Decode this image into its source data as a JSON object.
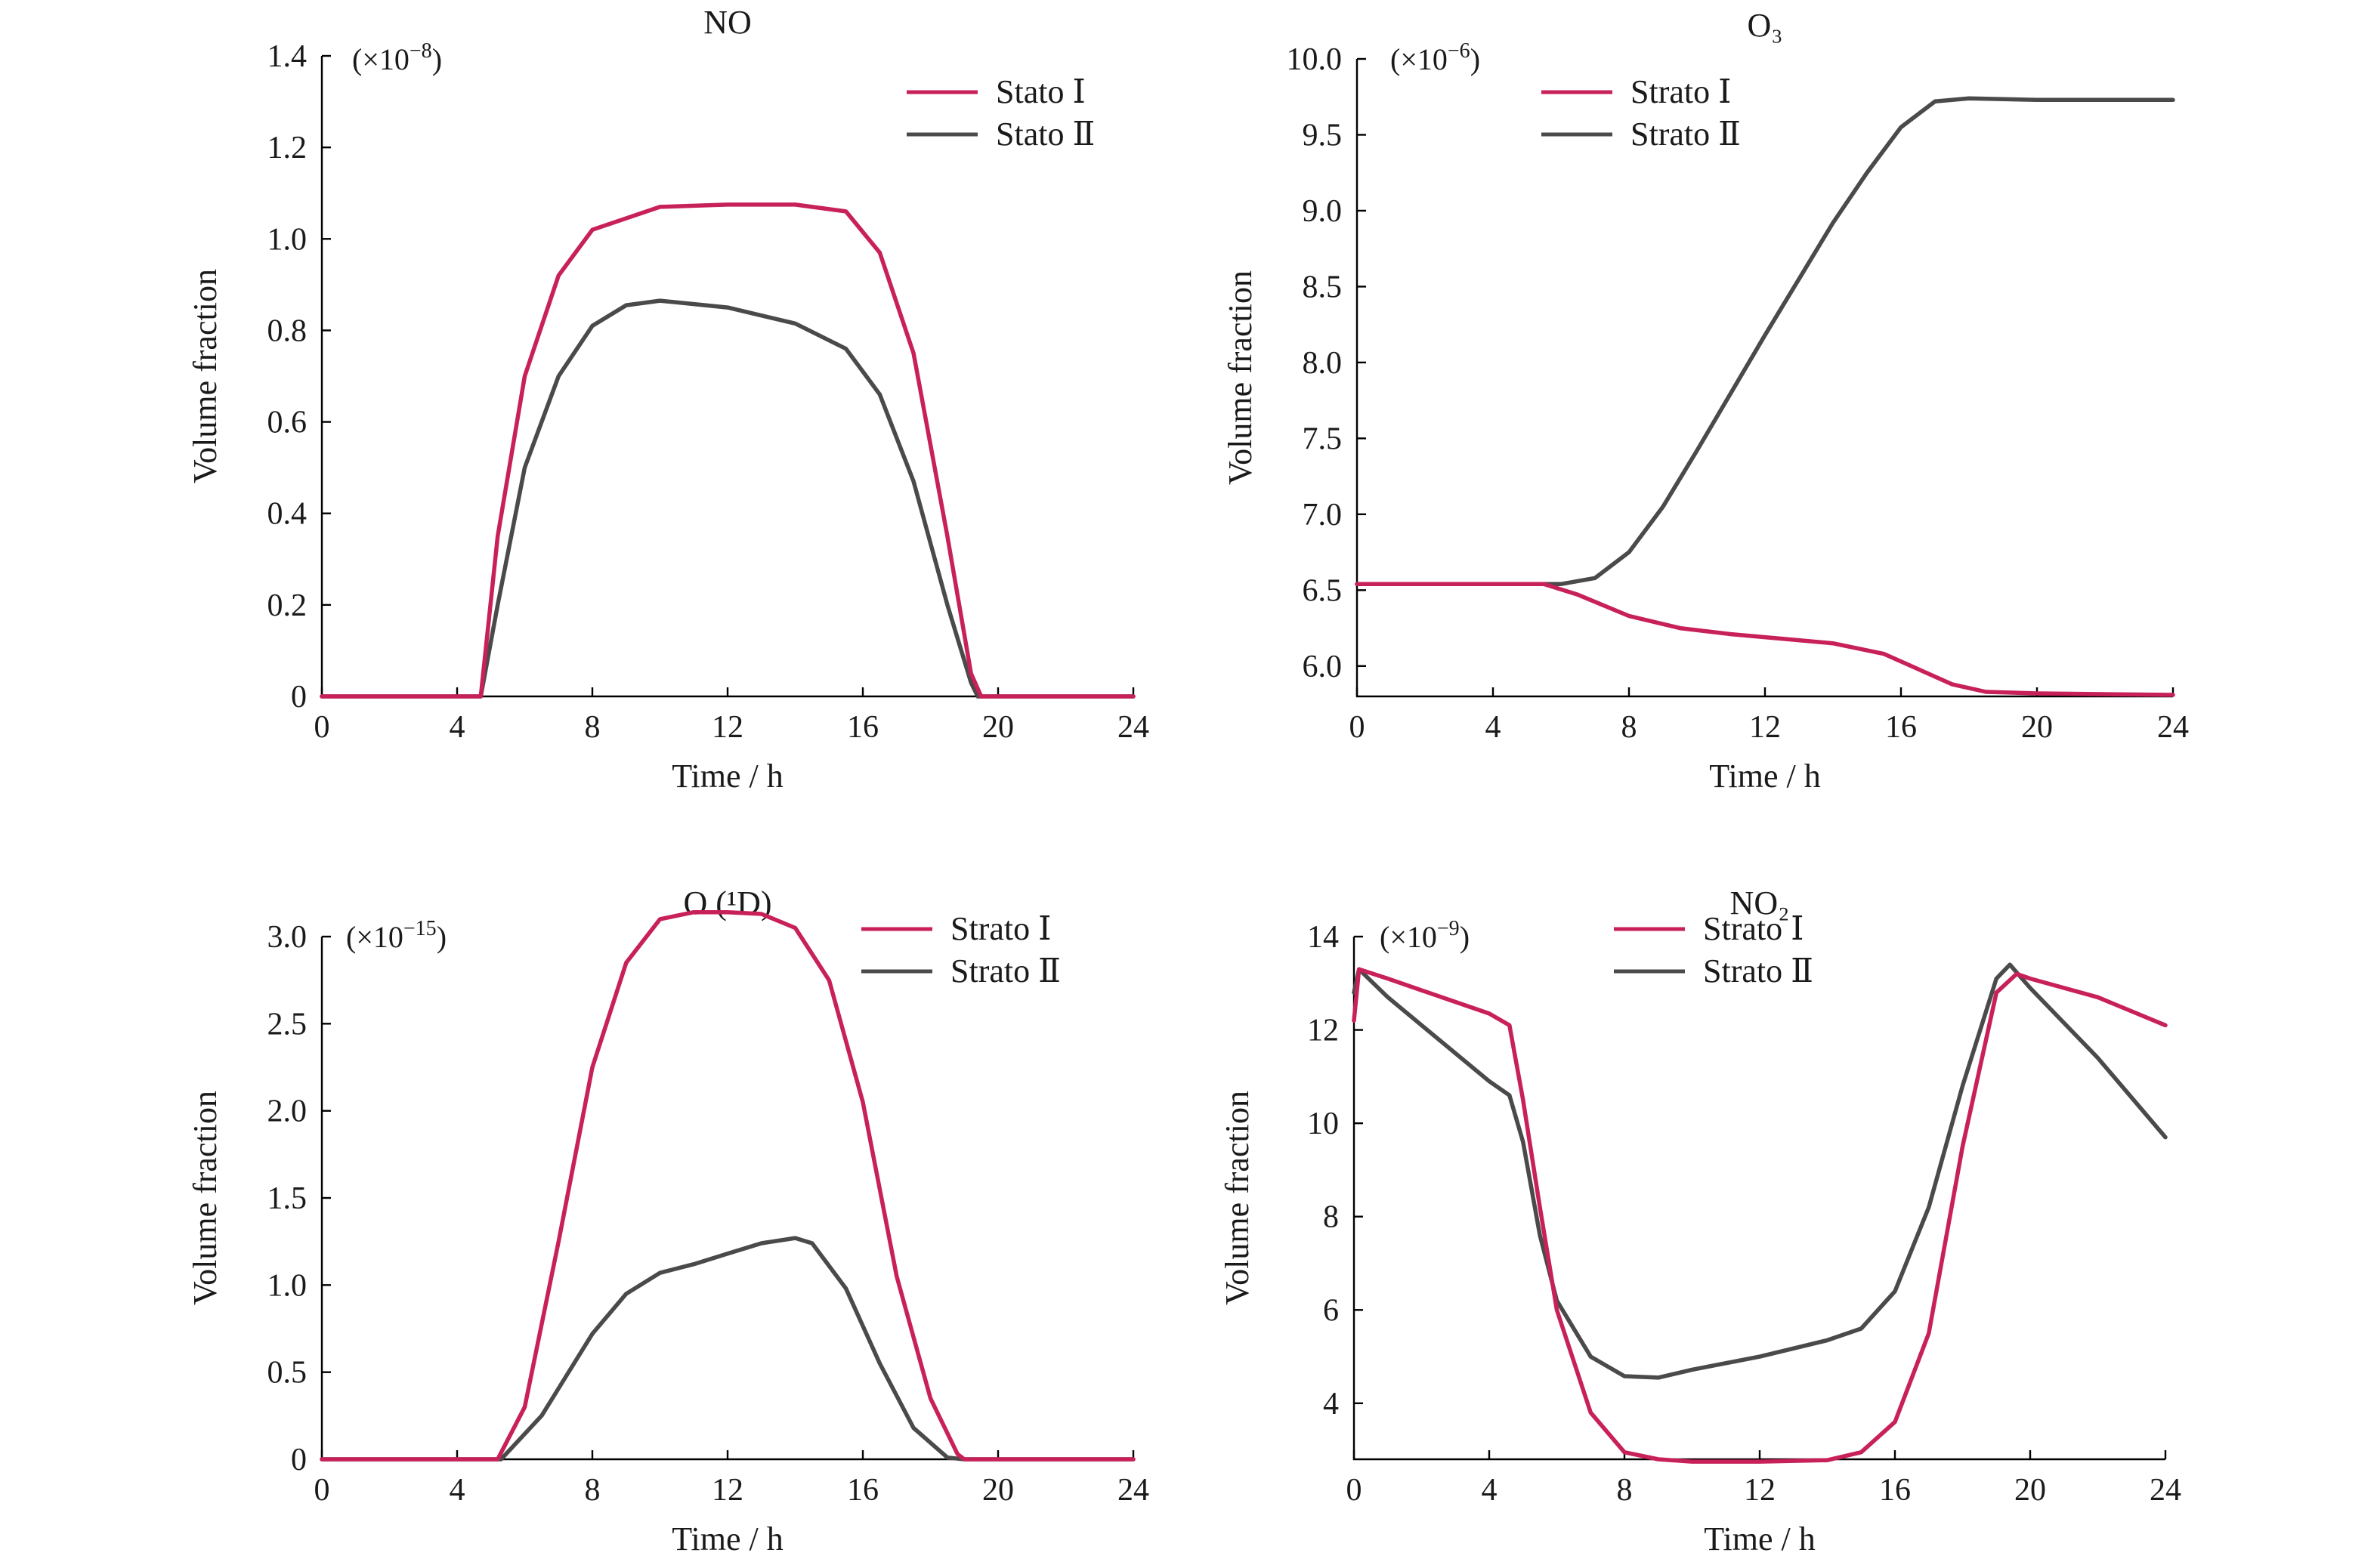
{
  "colors": {
    "series1": "#c8215a",
    "series2": "#4a4a4a"
  },
  "chart_data": [
    {
      "type": "line",
      "title": "NO",
      "multiplier": {
        "base": "(×10",
        "exp": "−8",
        "close": ")"
      },
      "xlabel": "Time / h",
      "ylabel": "Volume fraction",
      "xlim": [
        0,
        24
      ],
      "ylim": [
        0,
        1.4
      ],
      "xticks": [
        "0",
        "4",
        "8",
        "12",
        "16",
        "20",
        "24"
      ],
      "yticks": [
        "0",
        "0.2",
        "0.4",
        "0.6",
        "0.8",
        "1.0",
        "1.2",
        "1.4"
      ],
      "legend": "top-right",
      "series": [
        {
          "name": "Stato Ⅰ",
          "points": [
            [
              0,
              0
            ],
            [
              4.7,
              0
            ],
            [
              5.2,
              0.35
            ],
            [
              6,
              0.7
            ],
            [
              7,
              0.92
            ],
            [
              8,
              1.02
            ],
            [
              10,
              1.07
            ],
            [
              12,
              1.075
            ],
            [
              14,
              1.075
            ],
            [
              15.5,
              1.06
            ],
            [
              16.5,
              0.97
            ],
            [
              17.5,
              0.75
            ],
            [
              18.5,
              0.35
            ],
            [
              19.2,
              0.05
            ],
            [
              19.5,
              0
            ],
            [
              24,
              0
            ]
          ]
        },
        {
          "name": "Stato Ⅱ",
          "points": [
            [
              0,
              0
            ],
            [
              4.7,
              0
            ],
            [
              5.2,
              0.2
            ],
            [
              6,
              0.5
            ],
            [
              7,
              0.7
            ],
            [
              8,
              0.81
            ],
            [
              9,
              0.855
            ],
            [
              10,
              0.865
            ],
            [
              12,
              0.85
            ],
            [
              14,
              0.815
            ],
            [
              15.5,
              0.76
            ],
            [
              16.5,
              0.66
            ],
            [
              17.5,
              0.47
            ],
            [
              18.5,
              0.2
            ],
            [
              19.2,
              0.03
            ],
            [
              19.4,
              0
            ],
            [
              24,
              0
            ]
          ]
        }
      ]
    },
    {
      "type": "line",
      "title": "O₃",
      "multiplier": {
        "base": "(×10",
        "exp": "−6",
        "close": ")"
      },
      "xlabel": "Time / h",
      "ylabel": "Volume fraction",
      "xlim": [
        0,
        24
      ],
      "ylim": [
        5.8,
        10.0
      ],
      "xticks": [
        "0",
        "4",
        "8",
        "12",
        "16",
        "20",
        "24"
      ],
      "yticks": [
        "6.0",
        "6.5",
        "7.0",
        "7.5",
        "8.0",
        "8.5",
        "9.0",
        "9.5",
        "10.0"
      ],
      "legend": "top-left",
      "series": [
        {
          "name": "Strato Ⅰ",
          "points": [
            [
              0,
              6.54
            ],
            [
              5.5,
              6.54
            ],
            [
              6.5,
              6.47
            ],
            [
              8,
              6.33
            ],
            [
              9.5,
              6.25
            ],
            [
              11,
              6.21
            ],
            [
              12.5,
              6.18
            ],
            [
              14,
              6.15
            ],
            [
              15.5,
              6.08
            ],
            [
              16.5,
              5.98
            ],
            [
              17.5,
              5.88
            ],
            [
              18.5,
              5.83
            ],
            [
              20,
              5.82
            ],
            [
              24,
              5.81
            ]
          ]
        },
        {
          "name": "Strato Ⅱ",
          "points": [
            [
              0,
              6.54
            ],
            [
              6,
              6.54
            ],
            [
              7,
              6.58
            ],
            [
              8,
              6.75
            ],
            [
              9,
              7.05
            ],
            [
              10,
              7.42
            ],
            [
              11,
              7.8
            ],
            [
              12,
              8.18
            ],
            [
              13,
              8.55
            ],
            [
              14,
              8.92
            ],
            [
              15,
              9.25
            ],
            [
              16,
              9.55
            ],
            [
              17,
              9.72
            ],
            [
              18,
              9.74
            ],
            [
              20,
              9.73
            ],
            [
              24,
              9.73
            ]
          ]
        }
      ]
    },
    {
      "type": "line",
      "title": "O (¹D)",
      "multiplier": {
        "base": "(×10",
        "exp": "−15",
        "close": ")"
      },
      "xlabel": "Time / h",
      "ylabel": "Volume fraction",
      "xlim": [
        0,
        24
      ],
      "ylim": [
        0,
        3.0
      ],
      "xticks": [
        "0",
        "4",
        "8",
        "12",
        "16",
        "20",
        "24"
      ],
      "yticks": [
        "0",
        "0.5",
        "1.0",
        "1.5",
        "2.0",
        "2.5",
        "3.0"
      ],
      "legend": "top-right",
      "series": [
        {
          "name": "Strato Ⅰ",
          "points": [
            [
              0,
              0
            ],
            [
              5.2,
              0
            ],
            [
              6,
              0.3
            ],
            [
              7,
              1.25
            ],
            [
              8,
              2.25
            ],
            [
              9,
              2.85
            ],
            [
              10,
              3.1
            ],
            [
              11,
              3.14
            ],
            [
              12,
              3.14
            ],
            [
              13,
              3.13
            ],
            [
              14,
              3.05
            ],
            [
              15,
              2.75
            ],
            [
              16,
              2.05
            ],
            [
              17,
              1.05
            ],
            [
              18,
              0.35
            ],
            [
              18.8,
              0.03
            ],
            [
              19,
              0
            ],
            [
              24,
              0
            ]
          ]
        },
        {
          "name": "Strato Ⅱ",
          "points": [
            [
              0,
              0
            ],
            [
              5.3,
              0
            ],
            [
              6.5,
              0.25
            ],
            [
              8,
              0.72
            ],
            [
              9,
              0.95
            ],
            [
              10,
              1.07
            ],
            [
              11,
              1.12
            ],
            [
              12,
              1.18
            ],
            [
              13,
              1.24
            ],
            [
              14,
              1.27
            ],
            [
              14.5,
              1.24
            ],
            [
              15.5,
              0.98
            ],
            [
              16.5,
              0.55
            ],
            [
              17.5,
              0.18
            ],
            [
              18.5,
              0.01
            ],
            [
              19,
              0
            ],
            [
              24,
              0
            ]
          ]
        }
      ]
    },
    {
      "type": "line",
      "title": "NO₂",
      "multiplier": {
        "base": "(×10",
        "exp": "−9",
        "close": ")"
      },
      "xlabel": "Time / h",
      "ylabel": "Volume fraction",
      "xlim": [
        0,
        24
      ],
      "ylim": [
        2.8,
        14
      ],
      "xticks": [
        "0",
        "4",
        "8",
        "12",
        "16",
        "20",
        "24"
      ],
      "yticks": [
        "4",
        "6",
        "8",
        "10",
        "12",
        "14"
      ],
      "legend": "top-center",
      "series": [
        {
          "name": "Strato Ⅰ",
          "points": [
            [
              0,
              12.2
            ],
            [
              0.15,
              13.3
            ],
            [
              1,
              13.1
            ],
            [
              2,
              12.85
            ],
            [
              3,
              12.6
            ],
            [
              4,
              12.35
            ],
            [
              4.6,
              12.1
            ],
            [
              5,
              10.5
            ],
            [
              5.5,
              8.2
            ],
            [
              6,
              6.0
            ],
            [
              7,
              3.8
            ],
            [
              8,
              2.95
            ],
            [
              9,
              2.8
            ],
            [
              10,
              2.75
            ],
            [
              12,
              2.75
            ],
            [
              14,
              2.78
            ],
            [
              15,
              2.95
            ],
            [
              16,
              3.6
            ],
            [
              17,
              5.5
            ],
            [
              18,
              9.5
            ],
            [
              19,
              12.8
            ],
            [
              19.6,
              13.2
            ],
            [
              20,
              13.1
            ],
            [
              22,
              12.7
            ],
            [
              24,
              12.1
            ]
          ]
        },
        {
          "name": "Strato Ⅱ",
          "points": [
            [
              0,
              12.8
            ],
            [
              0.15,
              13.3
            ],
            [
              1,
              12.7
            ],
            [
              2,
              12.1
            ],
            [
              3,
              11.5
            ],
            [
              4,
              10.9
            ],
            [
              4.6,
              10.6
            ],
            [
              5,
              9.6
            ],
            [
              5.5,
              7.6
            ],
            [
              6,
              6.2
            ],
            [
              7,
              5.0
            ],
            [
              8,
              4.58
            ],
            [
              9,
              4.55
            ],
            [
              10,
              4.72
            ],
            [
              12,
              5.0
            ],
            [
              14,
              5.35
            ],
            [
              15,
              5.6
            ],
            [
              16,
              6.4
            ],
            [
              17,
              8.2
            ],
            [
              18,
              10.8
            ],
            [
              19,
              13.1
            ],
            [
              19.4,
              13.4
            ],
            [
              20,
              12.9
            ],
            [
              22,
              11.4
            ],
            [
              24,
              9.7
            ]
          ]
        }
      ]
    }
  ]
}
